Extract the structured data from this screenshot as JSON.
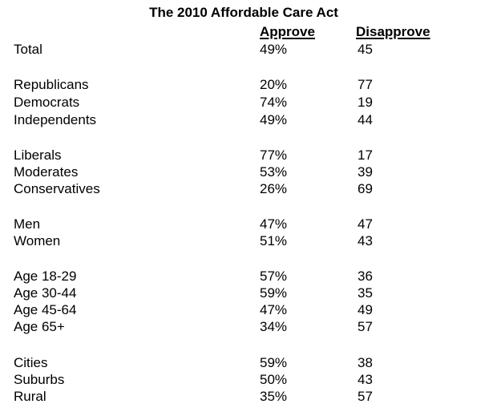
{
  "title": "The 2010 Affordable Care Act",
  "columns": {
    "approve": "Approve",
    "disapprove": "Disapprove"
  },
  "rows": [
    {
      "label": "Total",
      "approve": "49%",
      "disapprove": "45"
    },
    {
      "label": "Republicans",
      "approve": "20%",
      "disapprove": "77"
    },
    {
      "label": "Democrats",
      "approve": "74%",
      "disapprove": "19"
    },
    {
      "label": "Independents",
      "approve": "49%",
      "disapprove": "44"
    },
    {
      "label": "Liberals",
      "approve": "77%",
      "disapprove": "17"
    },
    {
      "label": "Moderates",
      "approve": "53%",
      "disapprove": "39"
    },
    {
      "label": "Conservatives",
      "approve": "26%",
      "disapprove": "69"
    },
    {
      "label": "Men",
      "approve": "47%",
      "disapprove": "47"
    },
    {
      "label": "Women",
      "approve": "51%",
      "disapprove": "43"
    },
    {
      "label": "Age 18-29",
      "approve": "57%",
      "disapprove": "36"
    },
    {
      "label": "Age 30-44",
      "approve": "59%",
      "disapprove": "35"
    },
    {
      "label": "Age 45-64",
      "approve": "47%",
      "disapprove": "49"
    },
    {
      "label": "Age 65+",
      "approve": "34%",
      "disapprove": "57"
    },
    {
      "label": "Cities",
      "approve": "59%",
      "disapprove": "38"
    },
    {
      "label": "Suburbs",
      "approve": "50%",
      "disapprove": "43"
    },
    {
      "label": "Rural",
      "approve": "35%",
      "disapprove": "57"
    }
  ]
}
